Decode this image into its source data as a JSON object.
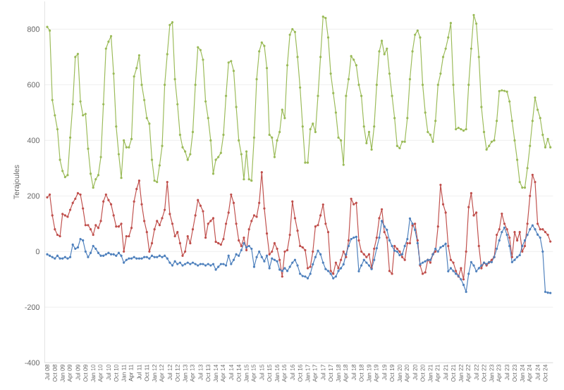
{
  "chart_data": {
    "type": "line",
    "ylabel": "Terajoules",
    "categories": [
      "Jul 08",
      null,
      null,
      "Oct 08",
      null,
      null,
      "Jan 09",
      null,
      null,
      "Apr 09",
      null,
      null,
      "Jul 09",
      null,
      null,
      "Oct 09",
      null,
      null,
      "Jan 10",
      null,
      null,
      "Apr 10",
      null,
      null,
      "Jul 10",
      null,
      null,
      "Oct 10",
      null,
      null,
      "Jan 11",
      null,
      null,
      "Apr 11",
      null,
      null,
      "Jul 11",
      null,
      null,
      "Oct 11",
      null,
      null,
      "Jan 12",
      null,
      null,
      "Apr 12",
      null,
      null,
      "Jul 12",
      null,
      null,
      "Oct 12",
      null,
      null,
      "Jan 13",
      null,
      null,
      "Apr 13",
      null,
      null,
      "Jul 13",
      null,
      null,
      "Oct 13",
      null,
      null,
      "Jan 14",
      null,
      null,
      "Apr 14",
      null,
      null,
      "Jul 14",
      null,
      null,
      "Oct 14",
      null,
      null,
      "Jan 15",
      null,
      null,
      "Apr 15",
      null,
      null,
      "Jul 15",
      null,
      null,
      "Oct 15",
      null,
      null,
      "Jan 16",
      null,
      null,
      "Apr 16",
      null,
      null,
      "Jul 16",
      null,
      null,
      "Oct 16",
      null,
      null,
      "Jan 17",
      null,
      null,
      "Apr 17",
      null,
      null,
      "Jul 17",
      null,
      null,
      "Oct 17",
      null,
      null,
      "Jan 18",
      null,
      null,
      "Apr 18",
      null,
      null,
      "Jul 18",
      null,
      null,
      "Oct 18",
      null,
      null,
      "Jan 19",
      null,
      null,
      "Apr 19",
      null,
      null,
      "Jul 19",
      null,
      null,
      "Oct 19",
      null,
      null,
      "Jan 20",
      null,
      null,
      "Apr 20",
      null,
      null,
      "Jul 20",
      null,
      null,
      "Oct 20",
      null,
      null,
      "Jan 21",
      null,
      null,
      "Apr 21",
      null,
      null,
      "Jul 21",
      null,
      null,
      "Oct 21",
      null,
      null,
      "Jan 22",
      null,
      null,
      "Apr 22",
      null,
      null,
      "Jul 22",
      null,
      null,
      "Oct 22",
      null,
      null,
      "Jan 23",
      null,
      null,
      "Apr 23",
      null,
      null,
      "Jul 23",
      null,
      null,
      "Oct 23",
      null,
      null,
      "Jan 24",
      null,
      null,
      "Apr 24",
      null,
      null,
      "Jul 24",
      null,
      null,
      "Oct 24",
      null,
      null
    ],
    "series": [
      {
        "color": "#9bbb59",
        "values": [
          808,
          795,
          545,
          490,
          440,
          330,
          290,
          268,
          275,
          410,
          530,
          700,
          711,
          540,
          490,
          495,
          370,
          280,
          230,
          260,
          275,
          340,
          530,
          730,
          755,
          775,
          640,
          450,
          350,
          265,
          400,
          375,
          375,
          405,
          630,
          660,
          706,
          600,
          545,
          480,
          460,
          330,
          255,
          250,
          310,
          380,
          600,
          710,
          815,
          825,
          620,
          530,
          420,
          375,
          360,
          330,
          350,
          430,
          600,
          735,
          725,
          690,
          540,
          480,
          400,
          280,
          330,
          340,
          355,
          420,
          560,
          680,
          685,
          650,
          520,
          400,
          350,
          260,
          360,
          260,
          255,
          410,
          620,
          720,
          752,
          740,
          660,
          420,
          410,
          340,
          400,
          430,
          510,
          480,
          670,
          780,
          800,
          790,
          700,
          590,
          450,
          320,
          320,
          440,
          460,
          430,
          560,
          700,
          845,
          840,
          770,
          640,
          570,
          500,
          410,
          400,
          312,
          560,
          620,
          703,
          690,
          670,
          600,
          560,
          450,
          390,
          430,
          367,
          450,
          600,
          720,
          758,
          710,
          730,
          640,
          560,
          480,
          380,
          372,
          395,
          395,
          480,
          620,
          720,
          780,
          795,
          770,
          600,
          500,
          430,
          420,
          395,
          470,
          600,
          640,
          700,
          730,
          770,
          822,
          600,
          440,
          445,
          440,
          435,
          440,
          600,
          730,
          851,
          820,
          700,
          520,
          430,
          367,
          380,
          395,
          400,
          470,
          577,
          580,
          578,
          575,
          540,
          470,
          400,
          330,
          250,
          230,
          230,
          300,
          380,
          470,
          554,
          510,
          480,
          420,
          375,
          405,
          375
        ]
      },
      {
        "color": "#c0504d",
        "values": [
          195,
          205,
          130,
          80,
          60,
          55,
          135,
          130,
          125,
          150,
          175,
          190,
          210,
          205,
          155,
          95,
          95,
          80,
          60,
          95,
          85,
          110,
          180,
          205,
          185,
          170,
          130,
          90,
          90,
          100,
          0,
          55,
          55,
          85,
          180,
          225,
          255,
          170,
          110,
          70,
          0,
          30,
          80,
          110,
          95,
          120,
          150,
          250,
          135,
          100,
          55,
          70,
          30,
          -15,
          0,
          55,
          30,
          80,
          130,
          185,
          165,
          145,
          50,
          100,
          110,
          120,
          35,
          30,
          25,
          45,
          100,
          140,
          205,
          175,
          100,
          40,
          20,
          50,
          5,
          80,
          110,
          130,
          125,
          175,
          285,
          155,
          65,
          -10,
          0,
          30,
          10,
          -30,
          -90,
          0,
          5,
          60,
          180,
          120,
          75,
          20,
          15,
          5,
          -60,
          -55,
          0,
          90,
          95,
          130,
          169,
          100,
          70,
          -70,
          -80,
          -40,
          -60,
          -30,
          0,
          -20,
          40,
          190,
          170,
          175,
          40,
          0,
          -10,
          -20,
          -10,
          -60,
          10,
          50,
          120,
          152,
          70,
          50,
          -70,
          -80,
          20,
          10,
          0,
          -20,
          -30,
          30,
          30,
          94,
          100,
          40,
          -50,
          -80,
          -75,
          -30,
          -40,
          -10,
          0,
          90,
          240,
          170,
          140,
          20,
          -30,
          -40,
          -70,
          -90,
          -60,
          -100,
          0,
          160,
          210,
          130,
          140,
          20,
          -60,
          -40,
          -50,
          -40,
          -30,
          -20,
          60,
          80,
          136,
          100,
          80,
          50,
          -20,
          70,
          40,
          70,
          0,
          20,
          100,
          200,
          276,
          250,
          100,
          80,
          80,
          70,
          60,
          36
        ]
      },
      {
        "color": "#4f81bd",
        "values": [
          -10,
          -15,
          -20,
          -25,
          -15,
          -25,
          -25,
          -20,
          -25,
          -20,
          25,
          10,
          15,
          45,
          40,
          0,
          -20,
          -5,
          20,
          10,
          -5,
          -15,
          -15,
          -10,
          -5,
          -10,
          -10,
          -15,
          -5,
          -15,
          -40,
          -30,
          -25,
          -25,
          -20,
          -25,
          -25,
          -25,
          -20,
          -20,
          -25,
          -15,
          -20,
          -20,
          -15,
          -20,
          -15,
          -25,
          -40,
          -50,
          -35,
          -45,
          -40,
          -50,
          -45,
          -40,
          -45,
          -40,
          -45,
          -50,
          -45,
          -45,
          -50,
          -45,
          -50,
          -45,
          -65,
          -55,
          -45,
          -45,
          -50,
          -15,
          -45,
          -30,
          -10,
          -15,
          5,
          30,
          15,
          20,
          10,
          -55,
          -20,
          0,
          -20,
          -35,
          -15,
          -60,
          -25,
          -30,
          -35,
          -65,
          -70,
          -60,
          -70,
          -55,
          -40,
          -30,
          -50,
          -80,
          -88,
          -90,
          -96,
          -80,
          -46,
          -20,
          3,
          -10,
          -40,
          -63,
          -70,
          -80,
          -96,
          -90,
          -70,
          -60,
          -46,
          -10,
          20,
          45,
          50,
          53,
          -71,
          -50,
          -30,
          -40,
          -50,
          -63,
          -30,
          12,
          50,
          110,
          90,
          78,
          40,
          20,
          3,
          0,
          -13,
          -10,
          20,
          45,
          119,
          100,
          78,
          30,
          -46,
          -40,
          -35,
          -30,
          -30,
          -10,
          10,
          0,
          15,
          20,
          28,
          -71,
          -60,
          -70,
          -80,
          -88,
          -100,
          -120,
          -145,
          -80,
          -38,
          -50,
          -71,
          -60,
          -50,
          -40,
          -45,
          -38,
          -38,
          -20,
          10,
          40,
          70,
          86,
          60,
          20,
          -38,
          -30,
          -20,
          -13,
          20,
          40,
          60,
          80,
          94,
          80,
          61,
          50,
          0,
          -145,
          -148,
          -149
        ]
      }
    ],
    "ylim": [
      -400,
      900
    ],
    "yticks": [
      -400,
      -200,
      0,
      200,
      400,
      600,
      800
    ],
    "grid": "y",
    "marker": "circle"
  }
}
